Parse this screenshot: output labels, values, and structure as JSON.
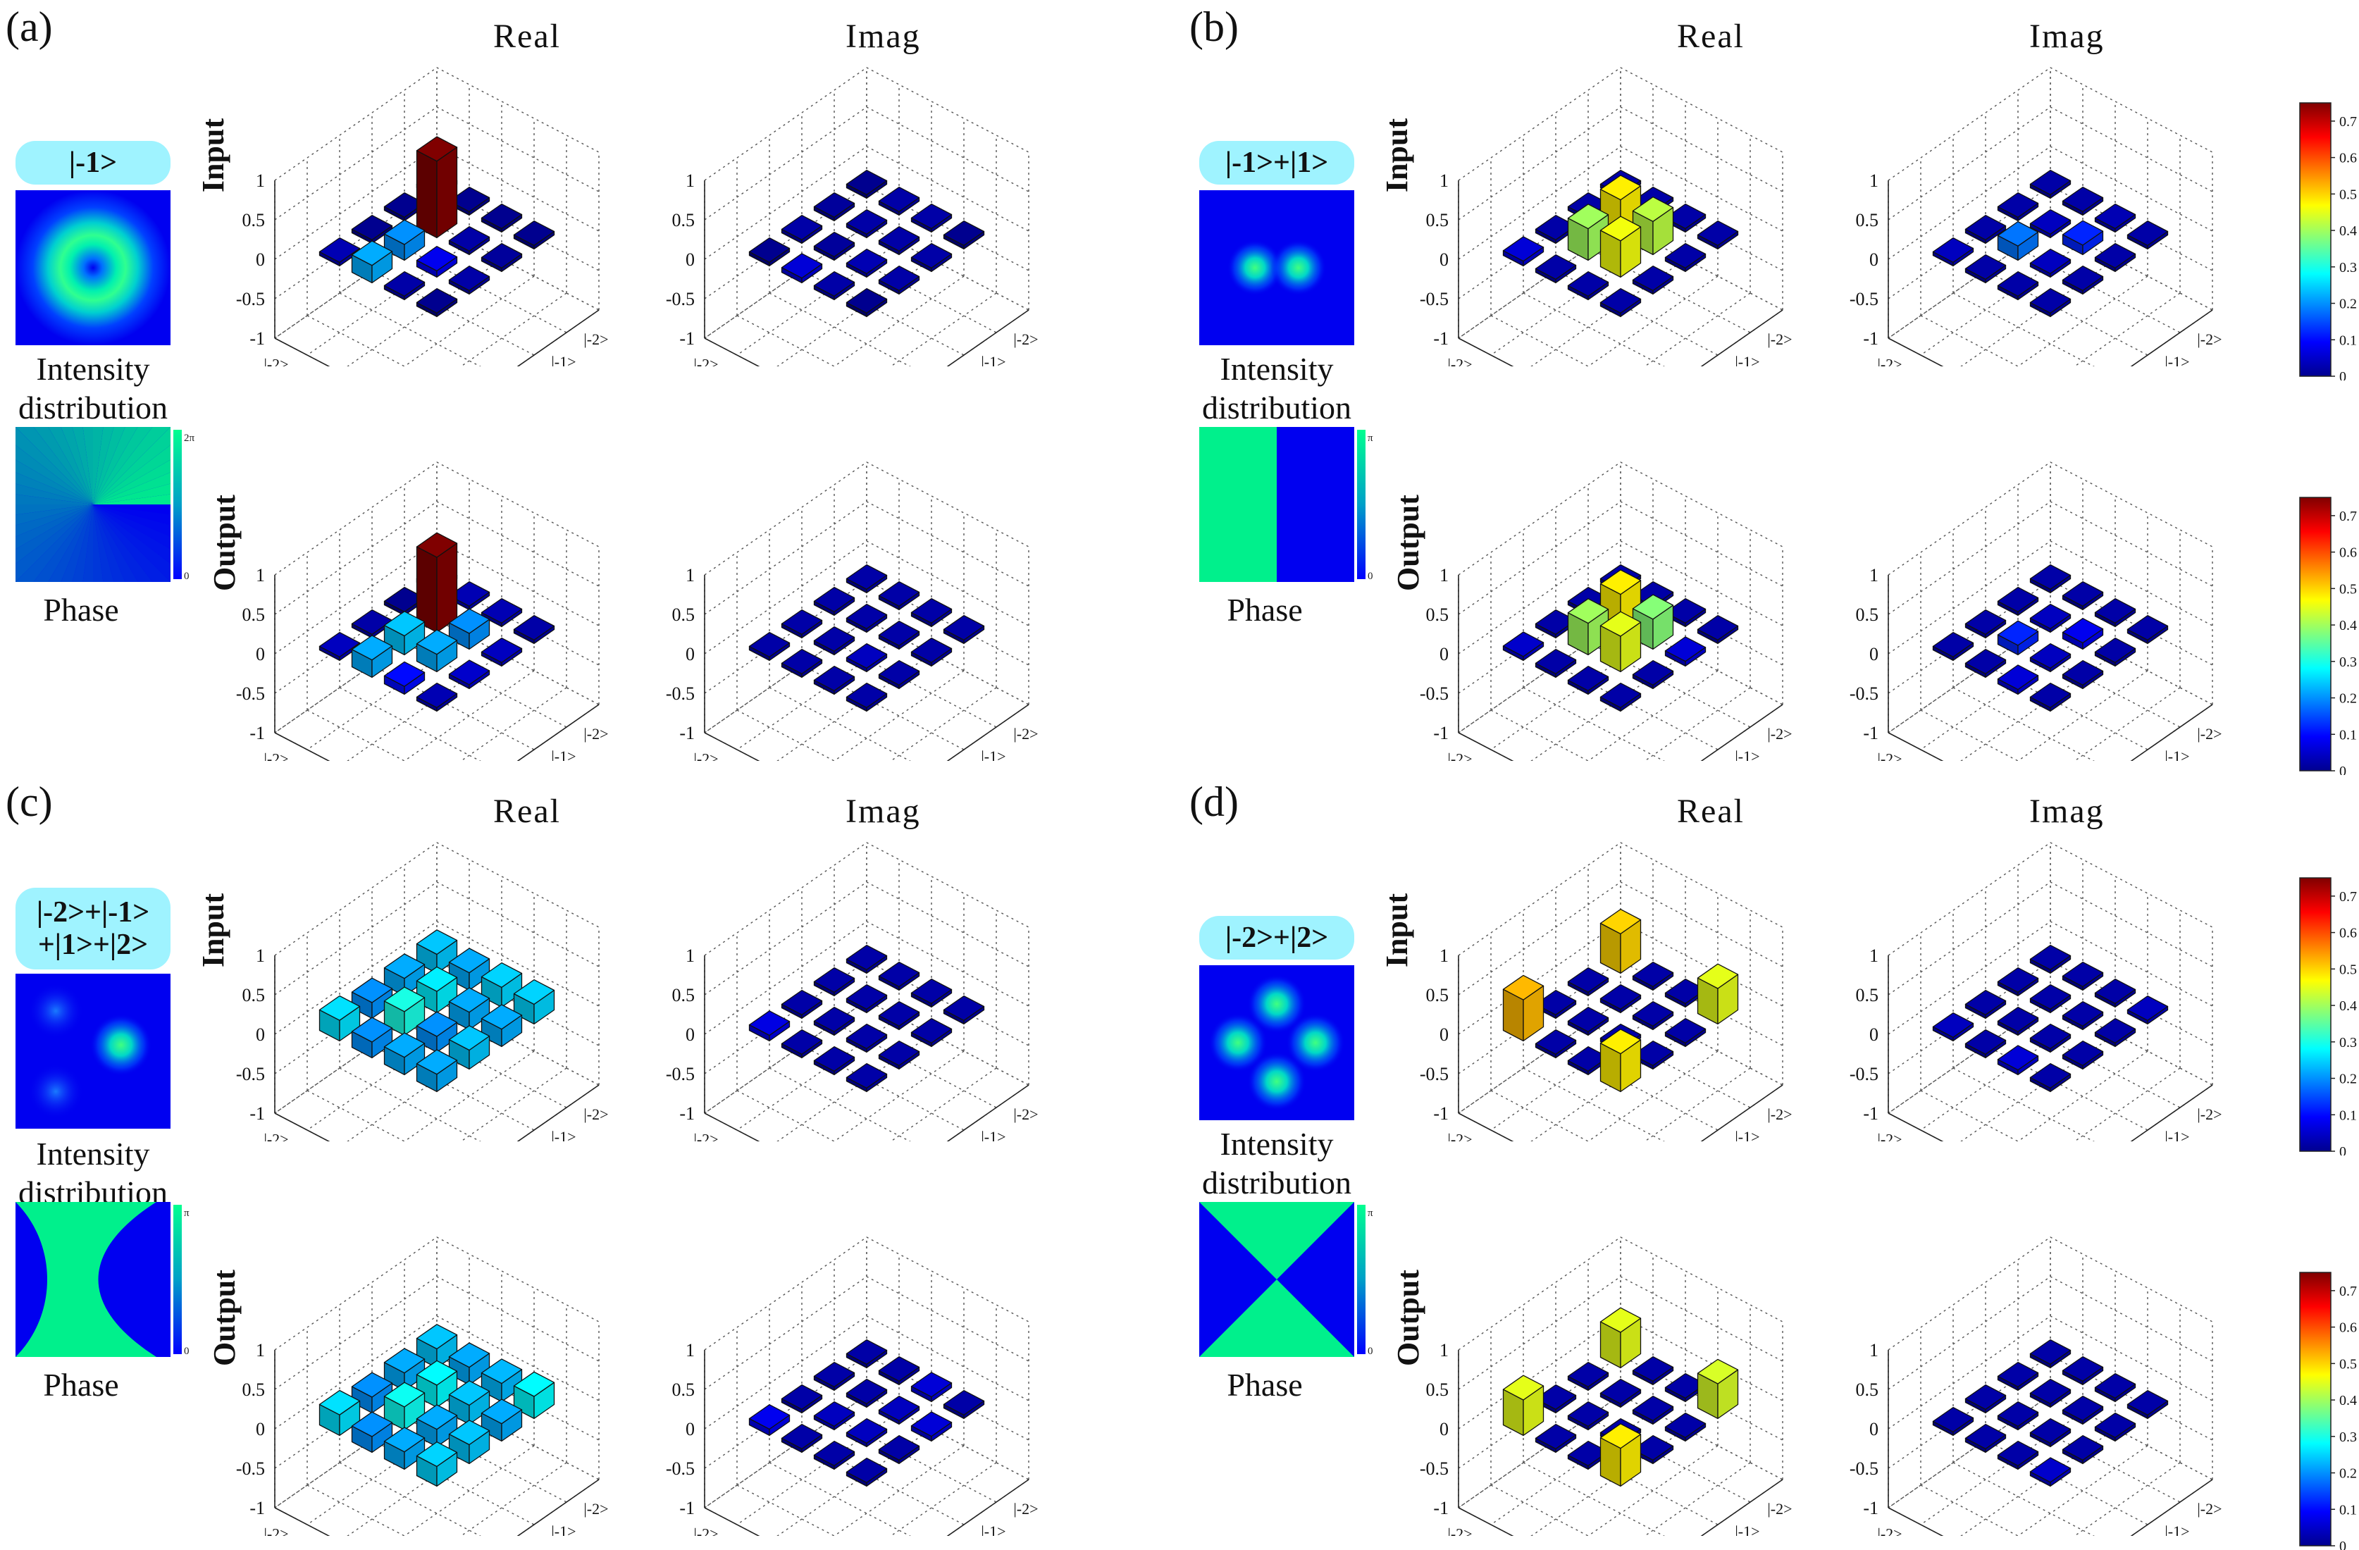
{
  "chart_data": {
    "type": "bar3d",
    "column_headers": [
      "Real",
      "Imag"
    ],
    "row_headers": [
      "Input",
      "Output"
    ],
    "z_ticks": [
      "1",
      "0.5",
      "0",
      "-0.5",
      "-1"
    ],
    "basis": [
      "|-2>",
      "|-1>",
      "|1>",
      "|2>"
    ],
    "captions": {
      "intensity": [
        "Intensity",
        "distribution"
      ],
      "phase": "Phase"
    },
    "colorbar_ticks": [
      "0.7",
      "0.6",
      "0.5",
      "0.4",
      "0.3",
      "0.2",
      "0.1",
      "0"
    ],
    "colorbar_range": [
      0,
      0.75
    ],
    "panels": [
      {
        "label": "(a)",
        "state": [
          "|-1>"
        ],
        "intensity": "donut",
        "phase": "vortex",
        "phase_ticks": [
          "2π",
          "0"
        ],
        "matrices": {
          "input_real": [
            [
              0.0,
              0.0,
              0.0,
              0.0
            ],
            [
              0.0,
              0.97,
              0.02,
              0.01
            ],
            [
              0.0,
              0.2,
              0.08,
              0.02
            ],
            [
              0.03,
              0.22,
              0.02,
              0.0
            ]
          ],
          "input_imag": [
            [
              0.0,
              0.02,
              0.02,
              0.0
            ],
            [
              0.01,
              0.02,
              0.02,
              0.02
            ],
            [
              0.02,
              0.01,
              0.03,
              0.02
            ],
            [
              0.0,
              0.06,
              0.02,
              0.0
            ]
          ],
          "output_real": [
            [
              0.02,
              0.03,
              0.03,
              0.02
            ],
            [
              0.0,
              0.95,
              0.2,
              0.04
            ],
            [
              0.02,
              0.24,
              0.22,
              0.05
            ],
            [
              0.04,
              0.22,
              0.1,
              0.03
            ]
          ],
          "output_imag": [
            [
              0.02,
              0.02,
              0.02,
              0.02
            ],
            [
              0.02,
              0.02,
              0.02,
              0.02
            ],
            [
              0.02,
              0.02,
              0.04,
              0.02
            ],
            [
              0.02,
              0.02,
              0.02,
              0.02
            ]
          ]
        }
      },
      {
        "label": "(b)",
        "state": [
          "|-1>+|1>"
        ],
        "intensity": "two-lobes",
        "phase": "half-split",
        "phase_ticks": [
          "π",
          "0"
        ],
        "matrices": {
          "input_real": [
            [
              0.02,
              0.02,
              0.02,
              0.02
            ],
            [
              0.02,
              0.48,
              0.42,
              0.02
            ],
            [
              0.02,
              0.4,
              0.46,
              0.02
            ],
            [
              0.06,
              0.02,
              0.02,
              0.02
            ]
          ],
          "input_imag": [
            [
              0.02,
              0.02,
              0.03,
              0.02
            ],
            [
              0.02,
              0.04,
              0.12,
              0.02
            ],
            [
              0.02,
              0.18,
              0.04,
              0.02
            ],
            [
              0.04,
              0.02,
              0.02,
              0.02
            ]
          ],
          "output_real": [
            [
              0.02,
              0.02,
              0.02,
              0.02
            ],
            [
              0.02,
              0.48,
              0.38,
              0.06
            ],
            [
              0.02,
              0.4,
              0.45,
              0.02
            ],
            [
              0.05,
              0.02,
              0.02,
              0.02
            ]
          ],
          "output_imag": [
            [
              0.02,
              0.02,
              0.02,
              0.02
            ],
            [
              0.02,
              0.04,
              0.08,
              0.02
            ],
            [
              0.02,
              0.12,
              0.04,
              0.02
            ],
            [
              0.02,
              0.02,
              0.06,
              0.02
            ]
          ]
        }
      },
      {
        "label": "(c)",
        "state": [
          "|-2>+|-1>",
          "+|1>+|2>"
        ],
        "intensity": "off-center-spot",
        "phase": "hyperbolic",
        "phase_ticks": [
          "π",
          "0"
        ],
        "matrices": {
          "input_real": [
            [
              0.24,
              0.22,
              0.25,
              0.25
            ],
            [
              0.22,
              0.27,
              0.22,
              0.22
            ],
            [
              0.2,
              0.3,
              0.2,
              0.24
            ],
            [
              0.26,
              0.2,
              0.22,
              0.22
            ]
          ],
          "input_imag": [
            [
              0.02,
              0.02,
              0.02,
              0.02
            ],
            [
              0.02,
              0.02,
              0.02,
              0.02
            ],
            [
              0.02,
              0.02,
              0.02,
              0.02
            ],
            [
              0.07,
              0.02,
              0.02,
              0.02
            ]
          ],
          "output_real": [
            [
              0.24,
              0.22,
              0.23,
              0.28
            ],
            [
              0.22,
              0.28,
              0.24,
              0.22
            ],
            [
              0.2,
              0.29,
              0.22,
              0.24
            ],
            [
              0.26,
              0.2,
              0.22,
              0.25
            ]
          ],
          "output_imag": [
            [
              0.02,
              0.02,
              0.06,
              0.02
            ],
            [
              0.02,
              0.02,
              0.04,
              0.06
            ],
            [
              0.02,
              0.04,
              0.04,
              0.02
            ],
            [
              0.08,
              0.02,
              0.02,
              0.02
            ]
          ]
        }
      },
      {
        "label": "(d)",
        "state": [
          "|-2>+|2>"
        ],
        "intensity": "four-lobes",
        "phase": "x-split",
        "phase_ticks": [
          "π",
          "0"
        ],
        "matrices": {
          "input_real": [
            [
              0.5,
              0.02,
              0.02,
              0.45
            ],
            [
              0.02,
              0.02,
              0.02,
              0.02
            ],
            [
              0.02,
              0.02,
              0.02,
              0.02
            ],
            [
              0.52,
              0.02,
              0.02,
              0.48
            ]
          ],
          "input_imag": [
            [
              0.02,
              0.02,
              0.02,
              0.04
            ],
            [
              0.02,
              0.02,
              0.02,
              0.02
            ],
            [
              0.02,
              0.02,
              0.02,
              0.02
            ],
            [
              0.04,
              0.02,
              0.06,
              0.02
            ]
          ],
          "output_real": [
            [
              0.45,
              0.02,
              0.02,
              0.44
            ],
            [
              0.02,
              0.02,
              0.02,
              0.02
            ],
            [
              0.02,
              0.02,
              0.02,
              0.02
            ],
            [
              0.45,
              0.02,
              0.02,
              0.48
            ]
          ],
          "output_imag": [
            [
              0.02,
              0.02,
              0.02,
              0.02
            ],
            [
              0.02,
              0.02,
              0.02,
              0.02
            ],
            [
              0.02,
              0.02,
              0.02,
              0.02
            ],
            [
              0.02,
              0.02,
              0.02,
              0.05
            ]
          ]
        }
      }
    ]
  }
}
